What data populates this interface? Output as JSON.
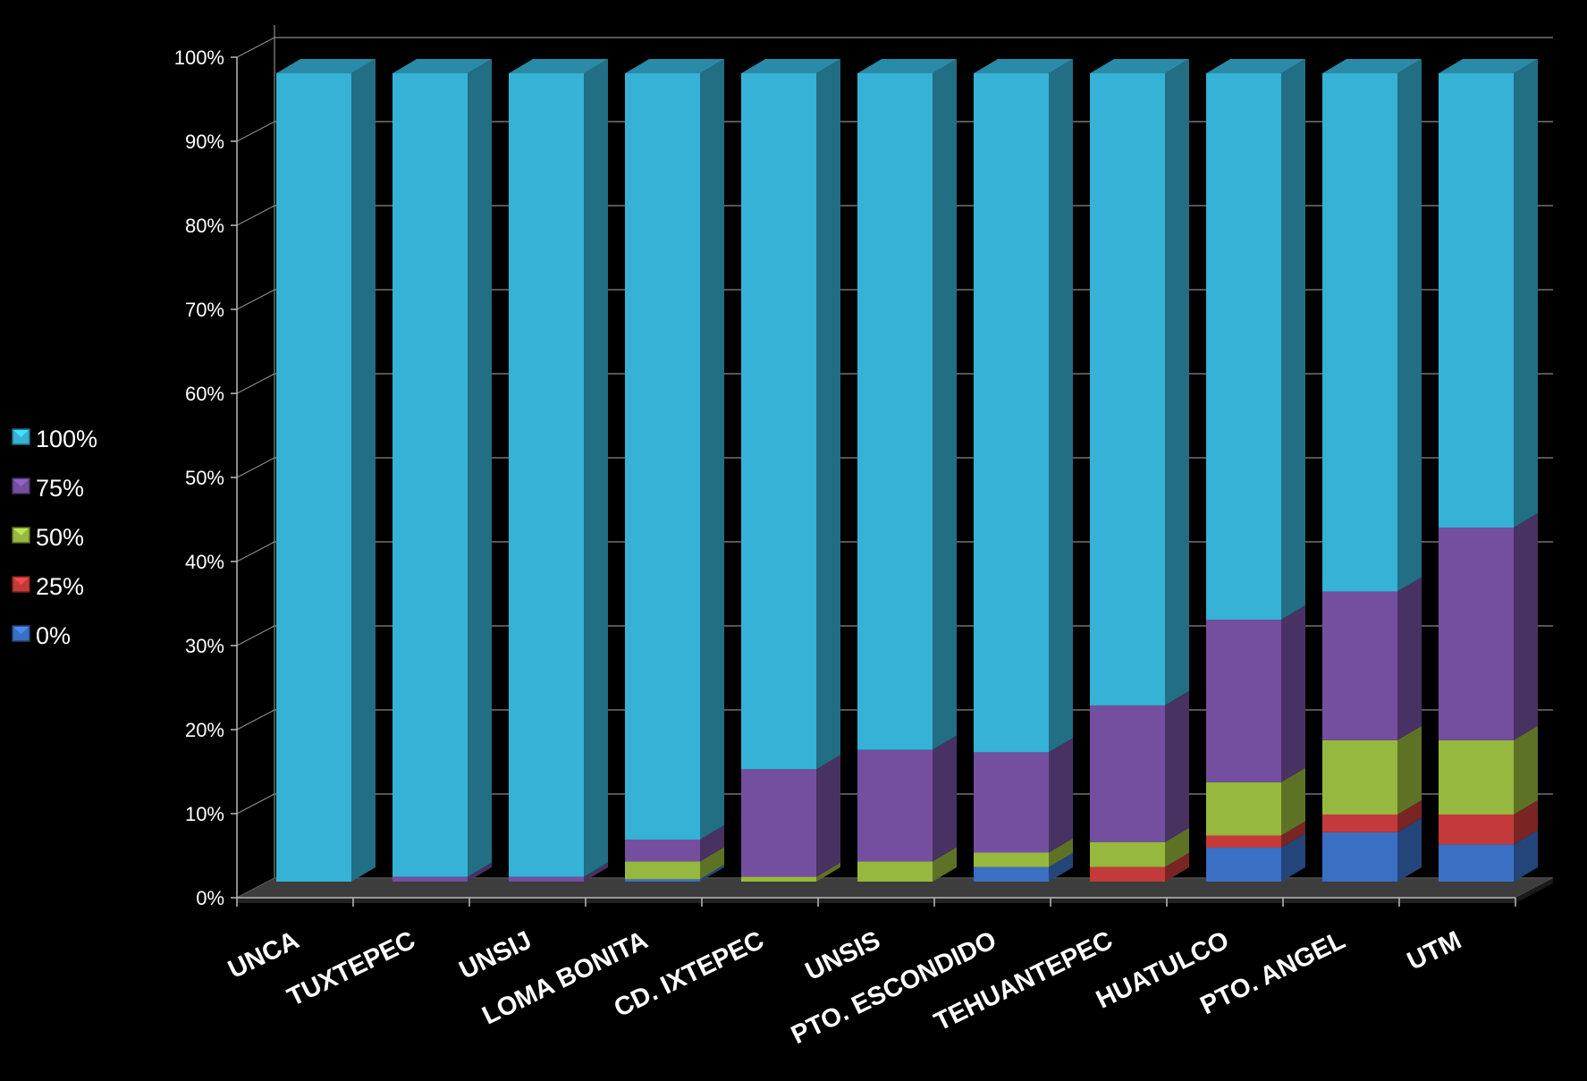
{
  "chart_data": {
    "type": "bar",
    "stacked": "percent",
    "three_d": true,
    "background": "#000000",
    "grid": true,
    "legend_position": "left",
    "categories": [
      "UNCA",
      "TUXTEPEC",
      "UNSIJ",
      "LOMA BONITA",
      "CD. IXTEPEC",
      "UNSIS",
      "PTO. ESCONDIDO",
      "TEHUANTEPEC",
      "HUATULCO",
      "PTO. ANGEL",
      "UTM"
    ],
    "ylim": [
      0,
      100
    ],
    "y_ticks": [
      "0%",
      "10%",
      "20%",
      "30%",
      "40%",
      "50%",
      "60%",
      "70%",
      "80%",
      "90%",
      "100%"
    ],
    "series": [
      {
        "name": "0%",
        "color": "#3a6fc4",
        "values": [
          0,
          0,
          0,
          0.3,
          0,
          0,
          1.8,
          0,
          4.2,
          6.1,
          4.6
        ]
      },
      {
        "name": "25%",
        "color": "#c43a3a",
        "values": [
          0,
          0,
          0,
          0,
          0,
          0,
          0,
          1.8,
          1.5,
          2.2,
          3.7
        ]
      },
      {
        "name": "50%",
        "color": "#97b83e",
        "values": [
          0,
          0,
          0,
          2.2,
          0.6,
          2.5,
          1.8,
          3.1,
          6.6,
          9.2,
          9.2
        ]
      },
      {
        "name": "75%",
        "color": "#744fa0",
        "values": [
          0,
          0.6,
          0.6,
          2.7,
          13.3,
          13.8,
          12.4,
          16.9,
          20.1,
          18.4,
          26.3
        ]
      },
      {
        "name": "100%",
        "color": "#35b2d6",
        "values": [
          100,
          99.4,
          99.4,
          94.8,
          86.1,
          83.7,
          84,
          78.2,
          67.6,
          64.1,
          56.2
        ]
      }
    ]
  }
}
